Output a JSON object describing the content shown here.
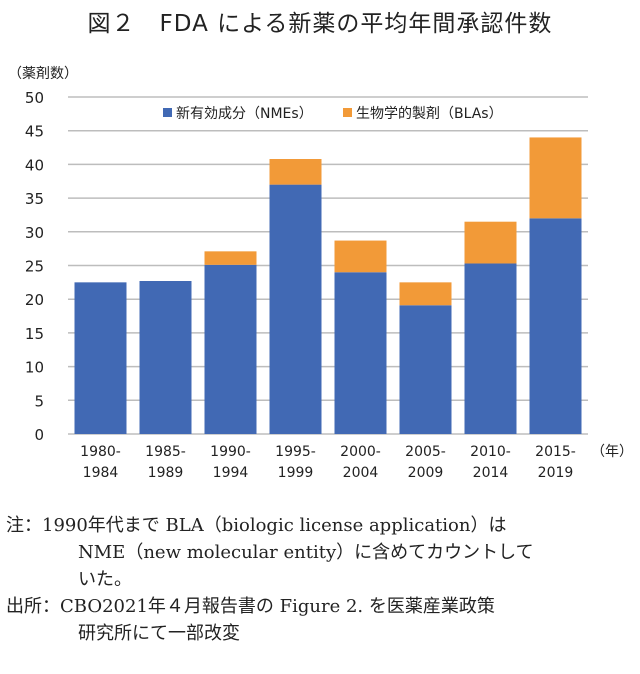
{
  "title": "図２　FDA による新薬の平均年間承認件数",
  "chart_data": {
    "type": "bar",
    "stacked": true,
    "title": "",
    "ylabel": "（薬剤数）",
    "xlabel": "（年）",
    "ylim": [
      0,
      50
    ],
    "yticks": [
      0,
      5,
      10,
      15,
      20,
      25,
      30,
      35,
      40,
      45,
      50
    ],
    "grid": true,
    "legend_position": "top",
    "categories": [
      [
        "1980-",
        "1984"
      ],
      [
        "1985-",
        "1989"
      ],
      [
        "1990-",
        "1994"
      ],
      [
        "1995-",
        "1999"
      ],
      [
        "2000-",
        "2004"
      ],
      [
        "2005-",
        "2009"
      ],
      [
        "2010-",
        "2014"
      ],
      [
        "2015-",
        "2019"
      ]
    ],
    "series": [
      {
        "name": "新有効成分（NMEs）",
        "color": "#4169b4",
        "values": [
          22.5,
          22.7,
          25.1,
          37.0,
          24.0,
          19.1,
          25.3,
          32.0
        ]
      },
      {
        "name": "生物学的製剤（BLAs）",
        "color": "#f29a38",
        "values": [
          0,
          0,
          2.0,
          3.8,
          4.7,
          3.4,
          6.2,
          12.0
        ]
      }
    ]
  },
  "notes": {
    "note_line1": "注：1990年代まで BLA（biologic license application）は",
    "note_line2": "NME（new molecular entity）に含めてカウントして",
    "note_line3": "いた。",
    "source_line1": "出所：CBO2021年４月報告書の Figure 2. を医薬産業政策",
    "source_line2": "研究所にて一部改変"
  }
}
